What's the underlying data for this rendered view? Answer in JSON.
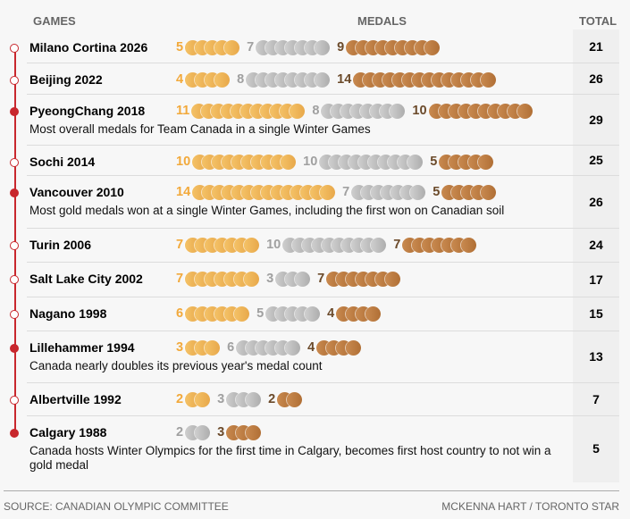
{
  "header": {
    "games": "GAMES",
    "medals": "MEDALS",
    "total": "TOTAL"
  },
  "colors": {
    "gold": "#eeb04f",
    "silver": "#bdbdbd",
    "bronze": "#bd7c42",
    "gold_count": "#f2a93b",
    "silver_count": "#a0a0a0",
    "bronze_count": "#6b4a2a",
    "timeline": "#c8272d"
  },
  "chart_data": {
    "type": "table",
    "columns": [
      "Games",
      "Gold",
      "Silver",
      "Bronze",
      "Total"
    ],
    "rows": [
      {
        "games": "Milano Cortina 2026",
        "gold": 5,
        "silver": 7,
        "bronze": 9,
        "total": "21",
        "highlight": false,
        "note": ""
      },
      {
        "games": "Beijing 2022",
        "gold": 4,
        "silver": 8,
        "bronze": 14,
        "total": "26",
        "highlight": false,
        "note": ""
      },
      {
        "games": "PyeongChang 2018",
        "gold": 11,
        "silver": 8,
        "bronze": 10,
        "total": "29",
        "highlight": true,
        "note": "Most overall medals for Team Canada in a single Winter Games"
      },
      {
        "games": "Sochi 2014",
        "gold": 10,
        "silver": 10,
        "bronze": 5,
        "total": "25",
        "highlight": false,
        "note": ""
      },
      {
        "games": "Vancouver 2010",
        "gold": 14,
        "silver": 7,
        "bronze": 5,
        "total": "26",
        "highlight": true,
        "note": "Most gold medals won at a single Winter Games, including the first won on Canadian soil"
      },
      {
        "games": "Turin 2006",
        "gold": 7,
        "silver": 10,
        "bronze": 7,
        "total": "24",
        "highlight": false,
        "note": ""
      },
      {
        "games": "Salt Lake City 2002",
        "gold": 7,
        "silver": 3,
        "bronze": 7,
        "total": "17",
        "highlight": false,
        "note": ""
      },
      {
        "games": "Nagano 1998",
        "gold": 6,
        "silver": 5,
        "bronze": 4,
        "total": "15",
        "highlight": false,
        "note": ""
      },
      {
        "games": "Lillehammer 1994",
        "gold": 3,
        "silver": 6,
        "bronze": 4,
        "total": "13",
        "highlight": true,
        "note": "Canada nearly doubles its previous year's medal count"
      },
      {
        "games": "Albertville 1992",
        "gold": 2,
        "silver": 3,
        "bronze": 2,
        "total": "7",
        "highlight": false,
        "note": ""
      },
      {
        "games": "Calgary 1988",
        "gold": 0,
        "silver": 2,
        "bronze": 3,
        "total": "5",
        "highlight": true,
        "note": "Canada hosts Winter Olympics for the first time in Calgary, becomes first host country to not win a gold medal"
      }
    ]
  },
  "footer": {
    "source": "SOURCE: CANADIAN OLYMPIC COMMITTEE",
    "credit": "MCKENNA HART / TORONTO STAR"
  }
}
